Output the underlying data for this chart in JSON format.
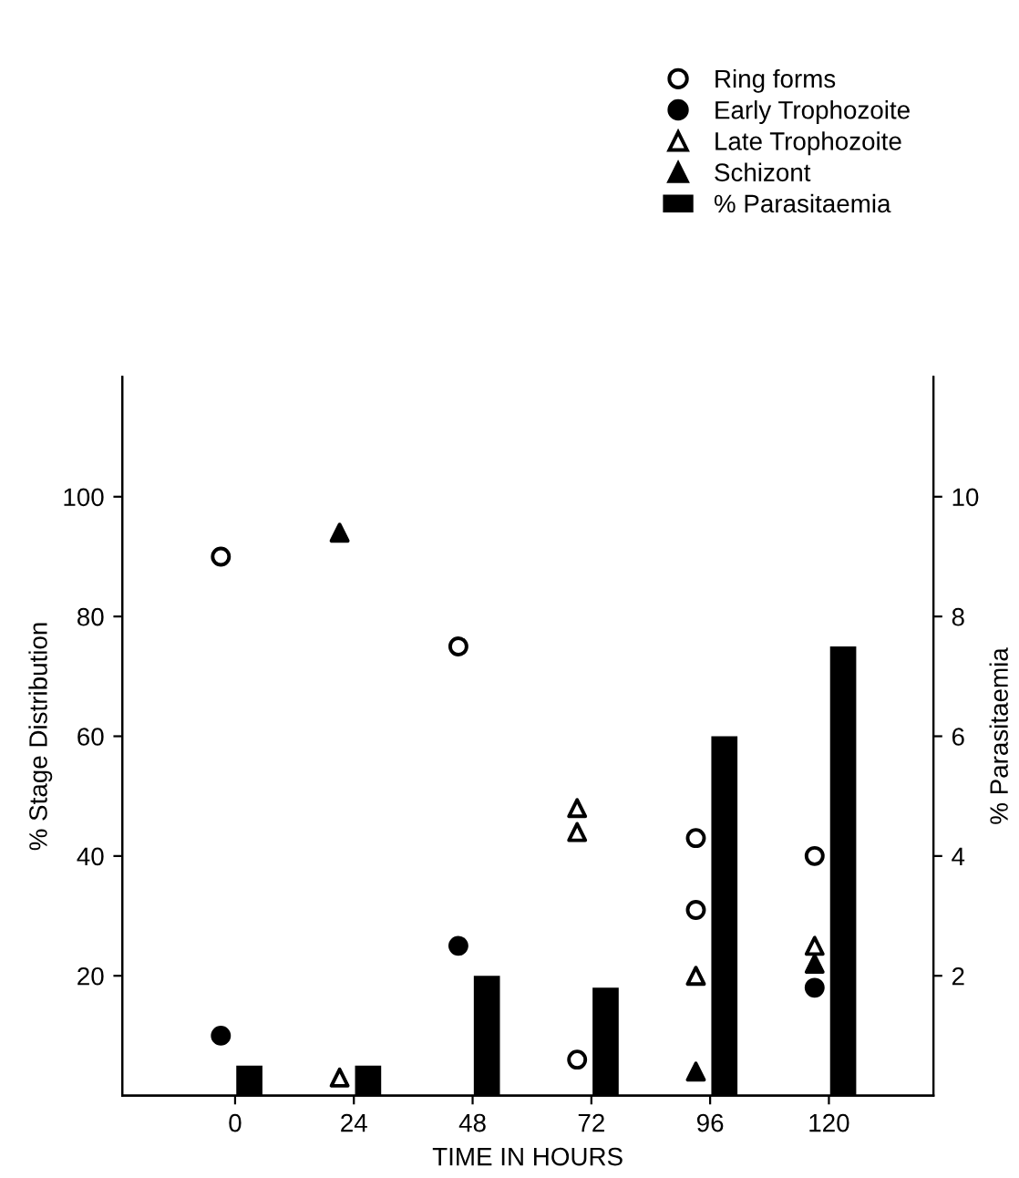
{
  "chart_data": {
    "type": "scatter",
    "xlabel": "TIME IN HOURS",
    "ylabel": "% Stage Distribution",
    "y2label": "% Parasitaemia",
    "categories": [
      "0",
      "24",
      "48",
      "72",
      "96",
      "120"
    ],
    "ylim": [
      0,
      120
    ],
    "yticks": [
      20,
      40,
      60,
      80,
      100
    ],
    "y2lim": [
      0,
      12
    ],
    "y2ticks": [
      2,
      4,
      6,
      8,
      10
    ],
    "legend": "top right",
    "grid": false,
    "series": [
      {
        "name": "Ring forms",
        "marker": "circle",
        "color": "#ffffff",
        "x": [
          "0",
          "48",
          "72",
          "96",
          "96",
          "120"
        ],
        "values": [
          90,
          75,
          6,
          43,
          31,
          40
        ]
      },
      {
        "name": "Early Trophozoite",
        "marker": "circle",
        "color": "#000000",
        "x": [
          "0",
          "48",
          "120"
        ],
        "values": [
          10,
          25,
          18
        ]
      },
      {
        "name": "Late Trophozoite",
        "marker": "triangle",
        "color": "#ffffff",
        "x": [
          "24",
          "72",
          "72",
          "96",
          "120"
        ],
        "values": [
          3,
          48,
          44,
          20,
          25
        ]
      },
      {
        "name": "Schizont",
        "marker": "triangle",
        "color": "#000000",
        "x": [
          "24",
          "96",
          "120"
        ],
        "values": [
          94,
          4,
          22
        ]
      },
      {
        "name": "% Parasitaemia",
        "type": "bar",
        "axis": "y2",
        "color": "#000000",
        "values": [
          0.5,
          0.5,
          2.0,
          1.8,
          6.0,
          7.5
        ]
      }
    ]
  }
}
